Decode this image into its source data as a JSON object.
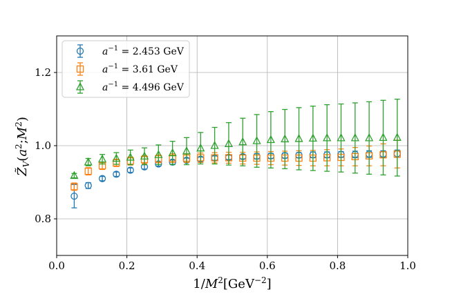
{
  "chart_data": {
    "type": "scatter",
    "title": "",
    "xlabel": "1/M^2 [GeV^-2]",
    "ylabel": "Z̃_V(a²;M²)",
    "xlim": [
      0.0,
      1.0
    ],
    "ylim": [
      0.7,
      1.3
    ],
    "xticks": [
      0.0,
      0.2,
      0.4,
      0.6,
      0.8,
      1.0
    ],
    "xtick_labels": [
      "0.0",
      "0.2",
      "0.4",
      "0.6",
      "0.8",
      "1.0"
    ],
    "yticks": [
      0.8,
      1.0,
      1.2
    ],
    "ytick_labels": [
      "0.8",
      "1.0",
      "1.2"
    ],
    "grid": true,
    "legend_position": "top-left",
    "x": [
      0.05,
      0.09,
      0.13,
      0.17,
      0.21,
      0.25,
      0.29,
      0.33,
      0.37,
      0.41,
      0.45,
      0.49,
      0.53,
      0.57,
      0.61,
      0.65,
      0.69,
      0.73,
      0.77,
      0.81,
      0.85,
      0.89,
      0.93,
      0.97
    ],
    "series": [
      {
        "name": "a^-1 = 2.453 GeV",
        "marker": "circle",
        "color": "#1f77b4",
        "values": [
          0.862,
          0.891,
          0.91,
          0.922,
          0.933,
          0.942,
          0.95,
          0.955,
          0.96,
          0.963,
          0.966,
          0.968,
          0.97,
          0.971,
          0.972,
          0.973,
          0.974,
          0.975,
          0.975,
          0.976,
          0.976,
          0.977,
          0.977,
          0.978
        ],
        "errors": [
          0.032,
          0.008,
          0.006,
          0.006,
          0.006,
          0.006,
          0.006,
          0.006,
          0.006,
          0.006,
          0.006,
          0.006,
          0.006,
          0.007,
          0.007,
          0.007,
          0.007,
          0.008,
          0.008,
          0.008,
          0.009,
          0.009,
          0.009,
          0.01
        ]
      },
      {
        "name": "a^-1 = 3.61 GeV",
        "marker": "square",
        "color": "#ff7f0e",
        "values": [
          0.888,
          0.93,
          0.945,
          0.953,
          0.958,
          0.962,
          0.964,
          0.966,
          0.966,
          0.967,
          0.967,
          0.967,
          0.966,
          0.966,
          0.966,
          0.966,
          0.966,
          0.966,
          0.967,
          0.968,
          0.97,
          0.972,
          0.975,
          0.977
        ],
        "errors": [
          0.01,
          0.01,
          0.01,
          0.01,
          0.011,
          0.011,
          0.011,
          0.012,
          0.012,
          0.013,
          0.014,
          0.015,
          0.016,
          0.017,
          0.018,
          0.019,
          0.02,
          0.021,
          0.022,
          0.023,
          0.025,
          0.027,
          0.03,
          0.038
        ]
      },
      {
        "name": "a^-1 = 4.496 GeV",
        "marker": "triangle",
        "color": "#2ca02c",
        "values": [
          0.918,
          0.955,
          0.963,
          0.965,
          0.968,
          0.971,
          0.975,
          0.98,
          0.985,
          0.993,
          1.0,
          1.005,
          1.01,
          1.013,
          1.016,
          1.018,
          1.019,
          1.02,
          1.021,
          1.021,
          1.021,
          1.021,
          1.022,
          1.022
        ],
        "errors": [
          0.006,
          0.01,
          0.013,
          0.016,
          0.02,
          0.023,
          0.027,
          0.032,
          0.037,
          0.043,
          0.05,
          0.058,
          0.065,
          0.072,
          0.077,
          0.081,
          0.085,
          0.088,
          0.091,
          0.093,
          0.096,
          0.099,
          0.102,
          0.105
        ]
      }
    ]
  }
}
